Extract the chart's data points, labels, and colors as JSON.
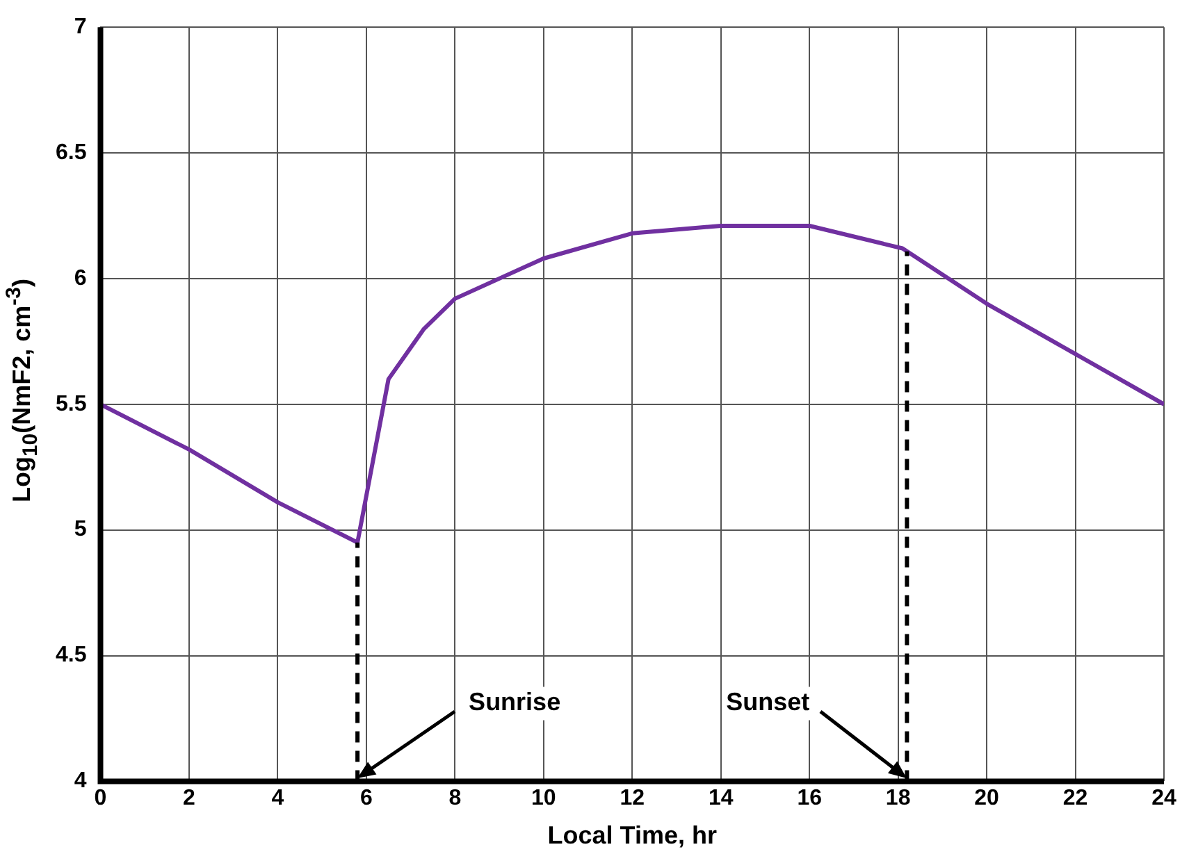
{
  "chart_data": {
    "type": "line",
    "xlabel": "Local Time, hr",
    "ylabel": "Log$_{10}$(NmF2, cm$^{-3}$)",
    "x": [
      0,
      2,
      4,
      5.8,
      6.5,
      7.3,
      8,
      10,
      12,
      14,
      16,
      18.1,
      20,
      22,
      24
    ],
    "series": [
      {
        "color": "#7030a0",
        "values": [
          5.5,
          5.32,
          5.11,
          4.95,
          5.6,
          5.8,
          5.92,
          6.08,
          6.18,
          6.21,
          6.21,
          6.12,
          5.9,
          5.7,
          5.5
        ]
      }
    ],
    "xlim": [
      0,
      24
    ],
    "xticks": [
      0,
      2,
      4,
      6,
      8,
      10,
      12,
      14,
      16,
      18,
      20,
      22,
      24
    ],
    "ylim": [
      4,
      7
    ],
    "yticks": [
      4,
      4.5,
      5,
      5.5,
      6,
      6.5,
      7
    ],
    "grid": true,
    "marker": "none",
    "line_style": "solid",
    "ref_lines": [
      {
        "axis": "x",
        "value": 5.8,
        "color": "#000000",
        "line_style": "dashed"
      },
      {
        "axis": "x",
        "value": 18.2,
        "color": "#000000",
        "line_style": "dashed"
      }
    ],
    "annotations": [
      {
        "text": "Sunrise",
        "x": 5.8,
        "y": 4
      },
      {
        "text": "Sunset",
        "x": 18.2,
        "y": 4
      }
    ]
  }
}
